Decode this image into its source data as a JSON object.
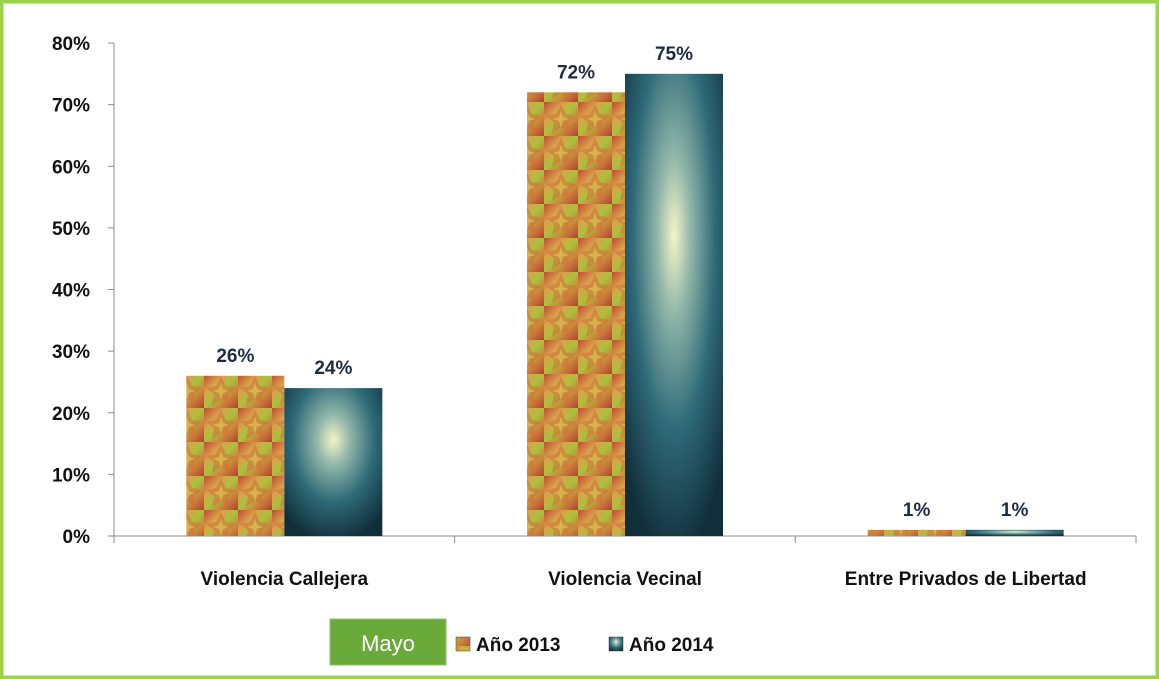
{
  "chart_data": {
    "type": "bar",
    "categories": [
      "Violencia Callejera",
      "Violencia Vecinal",
      "Entre Privados de Libertad"
    ],
    "series": [
      {
        "name": "Año 2013",
        "values": [
          26,
          72,
          1
        ],
        "labels": [
          "26%",
          "72%",
          "1%"
        ],
        "color": "#b5542e"
      },
      {
        "name": "Año 2014",
        "values": [
          24,
          75,
          1
        ],
        "labels": [
          "24%",
          "75%",
          "1%"
        ],
        "color": "#1e4f5f"
      }
    ],
    "ylim": [
      0,
      80
    ],
    "yticks": [
      "0%",
      "10%",
      "20%",
      "30%",
      "40%",
      "50%",
      "60%",
      "70%",
      "80%"
    ],
    "grid": false,
    "legend": "bottom-center",
    "tag": "Mayo",
    "tag_color": "#6aaa3a"
  }
}
